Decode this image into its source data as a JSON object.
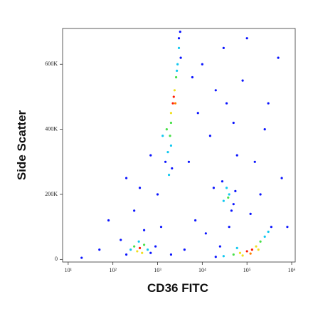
{
  "chart_data": {
    "type": "scatter",
    "x_label": "CD36 FITC",
    "y_label": "Side Scatter",
    "x_scale": "log",
    "xlim": [
      7.5,
      1200000
    ],
    "ylim": [
      -8000,
      710000
    ],
    "xticks": [
      {
        "value": 10,
        "label": "10¹"
      },
      {
        "value": 100,
        "label": "10²"
      },
      {
        "value": 1000,
        "label": "10³"
      },
      {
        "value": 10000,
        "label": "10⁴"
      },
      {
        "value": 100000,
        "label": "10⁵"
      },
      {
        "value": 1000000,
        "label": "10⁶"
      }
    ],
    "yticks": [
      0,
      {
        "value": 200000,
        "label": "200K"
      },
      {
        "value": 400000,
        "label": "400K"
      },
      {
        "value": 600000,
        "label": "600K"
      }
    ],
    "x": [
      20,
      50,
      80,
      150,
      200,
      300,
      500,
      700,
      1000,
      5000,
      8000,
      10000,
      15000,
      20000,
      30000,
      50000,
      80000,
      150000,
      300000,
      500000,
      7000,
      12000,
      4000,
      2000,
      25000,
      40000,
      200000,
      600000,
      100000,
      3000,
      60000,
      18000,
      800000,
      6000,
      35000,
      250000,
      120000,
      900,
      1200,
      400,
      1500,
      1800,
      2000,
      1600,
      2000,
      2200,
      2400,
      2000,
      2600,
      2800,
      3000,
      3200,
      1300,
      2500,
      2300,
      1900,
      2700,
      1700,
      3300,
      2100,
      250,
      300,
      350,
      400,
      450,
      500,
      600,
      200,
      380,
      700,
      30000,
      50000,
      70000,
      100000,
      130000,
      160000,
      200000,
      250000,
      300000,
      80000,
      120000,
      180000,
      20000,
      350000,
      60000,
      30000,
      40000,
      50000,
      35000,
      45000,
      38000,
      55000,
      28000
    ],
    "values": [
      5000,
      30000,
      120000,
      60000,
      250000,
      150000,
      90000,
      320000,
      200000,
      300000,
      450000,
      600000,
      380000,
      520000,
      650000,
      420000,
      550000,
      300000,
      480000,
      620000,
      120000,
      80000,
      30000,
      15000,
      40000,
      100000,
      200000,
      250000,
      680000,
      680000,
      320000,
      220000,
      100000,
      560000,
      480000,
      400000,
      140000,
      40000,
      100000,
      220000,
      300000,
      260000,
      350000,
      400000,
      450000,
      480000,
      520000,
      420000,
      560000,
      600000,
      650000,
      700000,
      380000,
      480000,
      500000,
      380000,
      580000,
      330000,
      620000,
      280000,
      30000,
      40000,
      25000,
      35000,
      20000,
      45000,
      30000,
      15000,
      55000,
      20000,
      10000,
      15000,
      20000,
      25000,
      30000,
      40000,
      55000,
      70000,
      85000,
      12000,
      18000,
      30000,
      8000,
      100000,
      35000,
      180000,
      200000,
      170000,
      220000,
      150000,
      190000,
      210000,
      240000
    ],
    "colors": [
      "#0a14ff",
      "#0a14ff",
      "#0a14ff",
      "#0a14ff",
      "#0a14ff",
      "#0a14ff",
      "#0a14ff",
      "#0a14ff",
      "#0a14ff",
      "#0a14ff",
      "#0a14ff",
      "#0a14ff",
      "#0a14ff",
      "#0a14ff",
      "#0a14ff",
      "#0a14ff",
      "#0a14ff",
      "#0a14ff",
      "#0a14ff",
      "#0a14ff",
      "#0a14ff",
      "#0a14ff",
      "#0a14ff",
      "#0a14ff",
      "#0a14ff",
      "#0a14ff",
      "#0a14ff",
      "#0a14ff",
      "#0a14ff",
      "#0a14ff",
      "#0a14ff",
      "#0a14ff",
      "#0a14ff",
      "#0a14ff",
      "#0a14ff",
      "#0a14ff",
      "#0a14ff",
      "#0a14ff",
      "#0a14ff",
      "#0a14ff",
      "#0a14ff",
      "#12c8f0",
      "#12c8f0",
      "#48e048",
      "#f0e020",
      "#ff1a00",
      "#f0e020",
      "#48e048",
      "#48e048",
      "#12c8f0",
      "#12c8f0",
      "#0a14ff",
      "#12c8f0",
      "#ff8000",
      "#ff1a00",
      "#48e048",
      "#12c8f0",
      "#12c8f0",
      "#0a14ff",
      "#0a14ff",
      "#12c8f0",
      "#48e048",
      "#f0e020",
      "#ff1a00",
      "#f0e020",
      "#48e048",
      "#12c8f0",
      "#0a14ff",
      "#12c8f0",
      "#0a14ff",
      "#12c8f0",
      "#48e048",
      "#f0e020",
      "#ff1a00",
      "#ff1a00",
      "#f0e020",
      "#48e048",
      "#12c8f0",
      "#12c8f0",
      "#f0e020",
      "#ff8000",
      "#f0e020",
      "#0a14ff",
      "#0a14ff",
      "#12c8f0",
      "#12c8f0",
      "#12c8f0",
      "#0a14ff",
      "#12c8f0",
      "#0a14ff",
      "#48e048",
      "#0a14ff",
      "#0a14ff"
    ]
  }
}
